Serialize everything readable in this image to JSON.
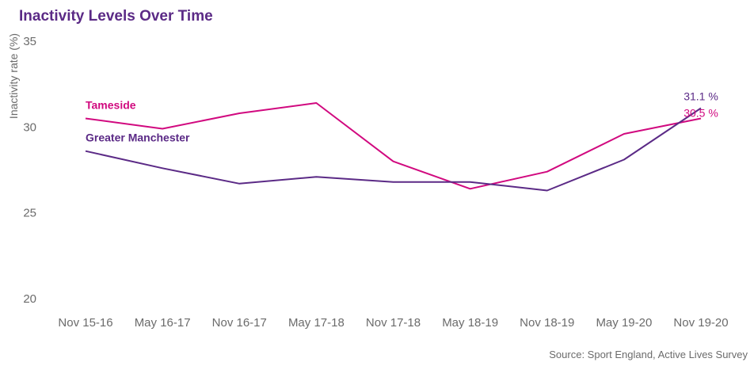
{
  "chart_data": {
    "type": "line",
    "title": "Inactivity Levels Over Time",
    "ylabel": "Inactivity rate (%)",
    "xlabel": "",
    "categories": [
      "Nov 15-16",
      "May 16-17",
      "Nov 16-17",
      "May 17-18",
      "Nov 17-18",
      "May 18-19",
      "Nov 18-19",
      "May 19-20",
      "Nov 19-20"
    ],
    "ylim": [
      20,
      35
    ],
    "yticks": [
      "20",
      "25",
      "30",
      "35"
    ],
    "grid": false,
    "series": [
      {
        "name": "Tameside",
        "color": "#d1097f",
        "values": [
          30.5,
          29.9,
          30.8,
          31.4,
          28.0,
          26.4,
          27.4,
          29.6,
          30.5
        ],
        "end_label": "30.5 %"
      },
      {
        "name": "Greater Manchester",
        "color": "#5b2a86",
        "values": [
          28.6,
          27.6,
          26.7,
          27.1,
          26.8,
          26.8,
          26.3,
          28.1,
          31.1
        ],
        "end_label": "31.1 %"
      }
    ],
    "caption": "Source: Sport England, Active Lives Survey",
    "title_color": "#5b2a86"
  }
}
